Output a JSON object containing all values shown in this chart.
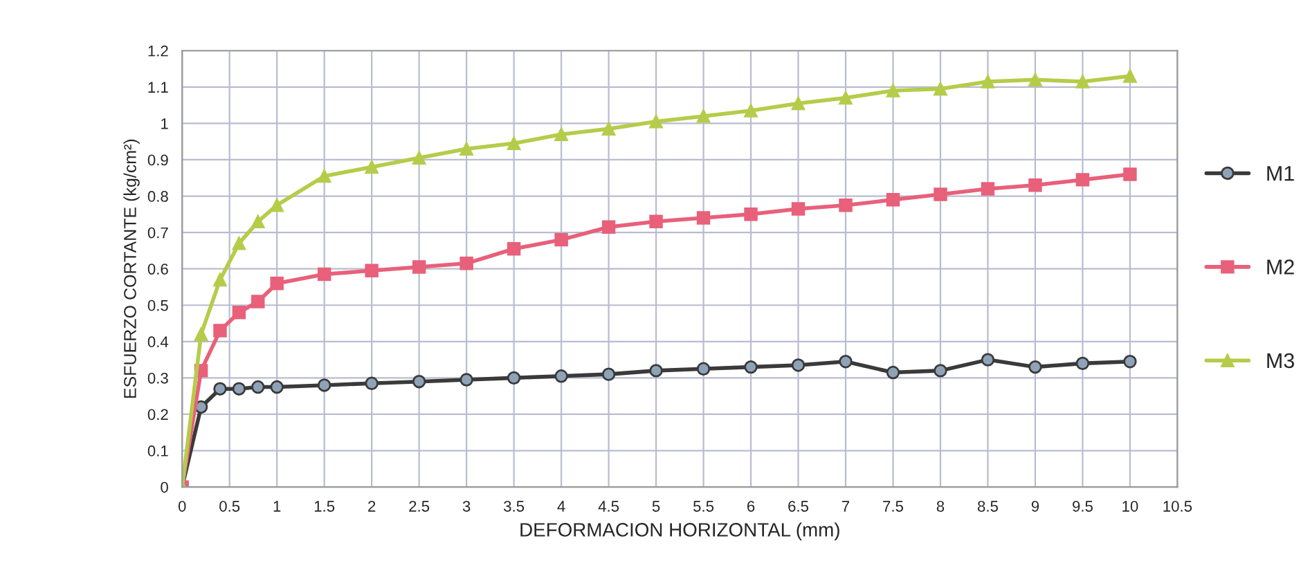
{
  "chart_data": {
    "type": "line",
    "xlabel": "DEFORMACION HORIZONTAL (mm)",
    "ylabel": "ESFUERZO CORTANTE (kg/cm²)",
    "x": [
      0,
      0.2,
      0.4,
      0.6,
      0.8,
      1,
      1.5,
      2,
      2.5,
      3,
      3.5,
      4,
      4.5,
      5,
      5.5,
      6,
      6.5,
      7,
      7.5,
      8,
      8.5,
      9,
      9.5,
      10
    ],
    "series": [
      {
        "name": "M1",
        "color": "#3a3a3a",
        "marker": "circle",
        "values": [
          0,
          0.22,
          0.27,
          0.27,
          0.275,
          0.275,
          0.28,
          0.285,
          0.29,
          0.295,
          0.3,
          0.305,
          0.31,
          0.32,
          0.325,
          0.33,
          0.335,
          0.345,
          0.315,
          0.32,
          0.35,
          0.33,
          0.34,
          0.345
        ]
      },
      {
        "name": "M2",
        "color": "#e8607a",
        "marker": "square",
        "values": [
          0,
          0.32,
          0.43,
          0.48,
          0.51,
          0.56,
          0.585,
          0.595,
          0.605,
          0.615,
          0.655,
          0.68,
          0.715,
          0.73,
          0.74,
          0.75,
          0.765,
          0.775,
          0.79,
          0.805,
          0.82,
          0.83,
          0.845,
          0.86
        ]
      },
      {
        "name": "M3",
        "color": "#b5cc4a",
        "marker": "triangle",
        "values": [
          0,
          0.42,
          0.57,
          0.67,
          0.73,
          0.775,
          0.855,
          0.88,
          0.905,
          0.93,
          0.945,
          0.97,
          0.985,
          1.005,
          1.02,
          1.035,
          1.055,
          1.07,
          1.09,
          1.095,
          1.115,
          1.12,
          1.115,
          1.13
        ]
      }
    ],
    "xlim": [
      0,
      10.5
    ],
    "xticks": [
      0,
      0.5,
      1,
      1.5,
      2,
      2.5,
      3,
      3.5,
      4,
      4.5,
      5,
      5.5,
      6,
      6.5,
      7,
      7.5,
      8,
      8.5,
      9,
      9.5,
      10,
      10.5
    ],
    "ylim": [
      0,
      1.2
    ],
    "yticks": [
      0,
      0.1,
      0.2,
      0.3,
      0.4,
      0.5,
      0.6,
      0.7,
      0.8,
      0.9,
      1,
      1.1,
      1.2
    ],
    "grid": true,
    "legend": "right"
  }
}
